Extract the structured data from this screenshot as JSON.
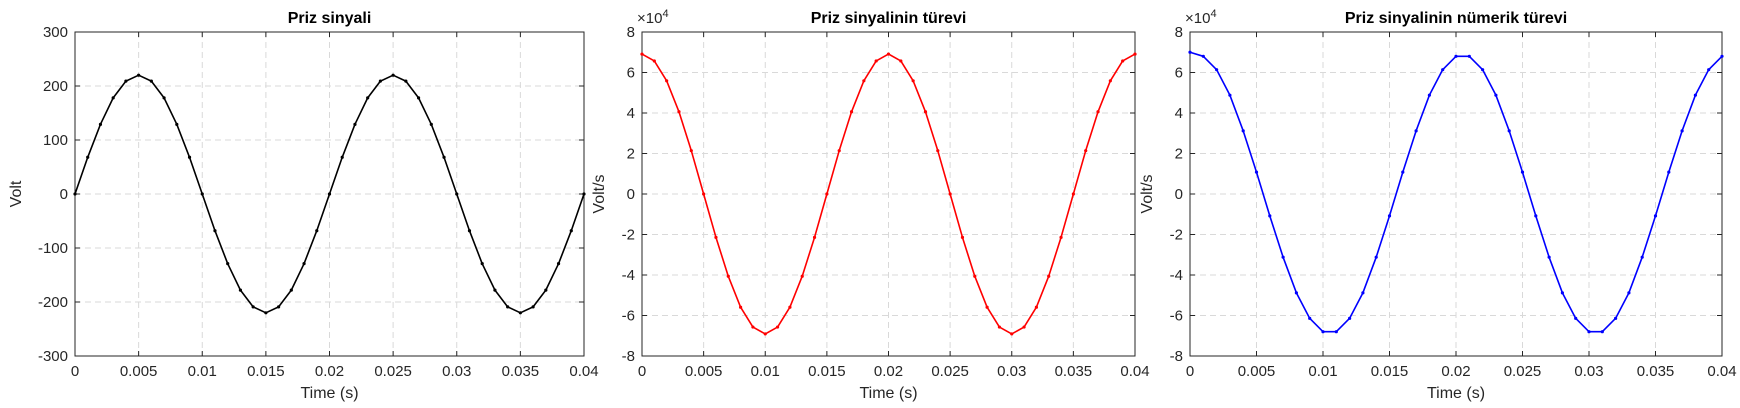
{
  "chart_data": [
    {
      "type": "line",
      "title": "Priz sinyali",
      "xlabel": "Time (s)",
      "ylabel": "Volt",
      "xlim": [
        0,
        0.04
      ],
      "ylim": [
        -300,
        300
      ],
      "xticks": [
        "0",
        "0.005",
        "0.01",
        "0.015",
        "0.02",
        "0.025",
        "0.03",
        "0.035",
        "0.04"
      ],
      "yticks": [
        "-300",
        "-200",
        "-100",
        "0",
        "100",
        "200",
        "300"
      ],
      "y_exponent": "",
      "grid": true,
      "color": "#000000",
      "series": [
        {
          "x": [
            0,
            0.001,
            0.002,
            0.003,
            0.004,
            0.005,
            0.006,
            0.007,
            0.008,
            0.009,
            0.01,
            0.011,
            0.012,
            0.013,
            0.014,
            0.015,
            0.016,
            0.017,
            0.018,
            0.019,
            0.02,
            0.021,
            0.022,
            0.023,
            0.024,
            0.025,
            0.026,
            0.027,
            0.028,
            0.029,
            0.03,
            0.031,
            0.032,
            0.033,
            0.034,
            0.035,
            0.036,
            0.037,
            0.038,
            0.039,
            0.04
          ],
          "y": [
            0,
            68,
            129,
            178,
            209,
            220,
            209,
            178,
            129,
            68,
            0,
            -68,
            -129,
            -178,
            -209,
            -220,
            -209,
            -178,
            -129,
            -68,
            0,
            68,
            129,
            178,
            209,
            220,
            209,
            178,
            129,
            68,
            0,
            -68,
            -129,
            -178,
            -209,
            -220,
            -209,
            -178,
            -129,
            -68,
            0
          ]
        }
      ]
    },
    {
      "type": "line",
      "title": "Priz sinyalinin türevi",
      "xlabel": "Time (s)",
      "ylabel": "Volt/s",
      "xlim": [
        0,
        0.04
      ],
      "ylim": [
        -8,
        8
      ],
      "xticks": [
        "0",
        "0.005",
        "0.01",
        "0.015",
        "0.02",
        "0.025",
        "0.03",
        "0.035",
        "0.04"
      ],
      "yticks": [
        "-8",
        "-6",
        "-4",
        "-2",
        "0",
        "2",
        "4",
        "6",
        "8"
      ],
      "y_exponent": "4",
      "grid": true,
      "color": "#ff0000",
      "series": [
        {
          "x": [
            0,
            0.001,
            0.002,
            0.003,
            0.004,
            0.005,
            0.006,
            0.007,
            0.008,
            0.009,
            0.01,
            0.011,
            0.012,
            0.013,
            0.014,
            0.015,
            0.016,
            0.017,
            0.018,
            0.019,
            0.02,
            0.021,
            0.022,
            0.023,
            0.024,
            0.025,
            0.026,
            0.027,
            0.028,
            0.029,
            0.03,
            0.031,
            0.032,
            0.033,
            0.034,
            0.035,
            0.036,
            0.037,
            0.038,
            0.039,
            0.04
          ],
          "y": [
            6.91,
            6.57,
            5.59,
            4.06,
            2.14,
            0,
            -2.14,
            -4.06,
            -5.59,
            -6.57,
            -6.91,
            -6.57,
            -5.59,
            -4.06,
            -2.14,
            0,
            2.14,
            4.06,
            5.59,
            6.57,
            6.91,
            6.57,
            5.59,
            4.06,
            2.14,
            0,
            -2.14,
            -4.06,
            -5.59,
            -6.57,
            -6.91,
            -6.57,
            -5.59,
            -4.06,
            -2.14,
            0,
            2.14,
            4.06,
            5.59,
            6.57,
            6.91
          ]
        }
      ]
    },
    {
      "type": "line",
      "title": "Priz sinyalinin nümerik türevi",
      "xlabel": "Time (s)",
      "ylabel": "Volt/s",
      "xlim": [
        0,
        0.04
      ],
      "ylim": [
        -8,
        8
      ],
      "xticks": [
        "0",
        "0.005",
        "0.01",
        "0.015",
        "0.02",
        "0.025",
        "0.03",
        "0.035",
        "0.04"
      ],
      "yticks": [
        "-8",
        "-6",
        "-4",
        "-2",
        "0",
        "2",
        "4",
        "6",
        "8"
      ],
      "y_exponent": "4",
      "grid": true,
      "color": "#0000ff",
      "series": [
        {
          "x": [
            0,
            0.001,
            0.002,
            0.003,
            0.004,
            0.005,
            0.006,
            0.007,
            0.008,
            0.009,
            0.01,
            0.011,
            0.012,
            0.013,
            0.014,
            0.015,
            0.016,
            0.017,
            0.018,
            0.019,
            0.02,
            0.021,
            0.022,
            0.023,
            0.024,
            0.025,
            0.026,
            0.027,
            0.028,
            0.029,
            0.03,
            0.031,
            0.032,
            0.033,
            0.034,
            0.035,
            0.036,
            0.037,
            0.038,
            0.039,
            0.04
          ],
          "y": [
            7.0,
            6.8,
            6.14,
            4.88,
            3.12,
            1.08,
            -1.08,
            -3.12,
            -4.88,
            -6.14,
            -6.8,
            -6.8,
            -6.14,
            -4.88,
            -3.12,
            -1.08,
            1.08,
            3.12,
            4.88,
            6.14,
            6.8,
            6.8,
            6.14,
            4.88,
            3.12,
            1.08,
            -1.08,
            -3.12,
            -4.88,
            -6.14,
            -6.8,
            -6.8,
            -6.14,
            -4.88,
            -3.12,
            -1.08,
            1.08,
            3.12,
            4.88,
            6.14,
            6.8
          ]
        }
      ]
    }
  ]
}
